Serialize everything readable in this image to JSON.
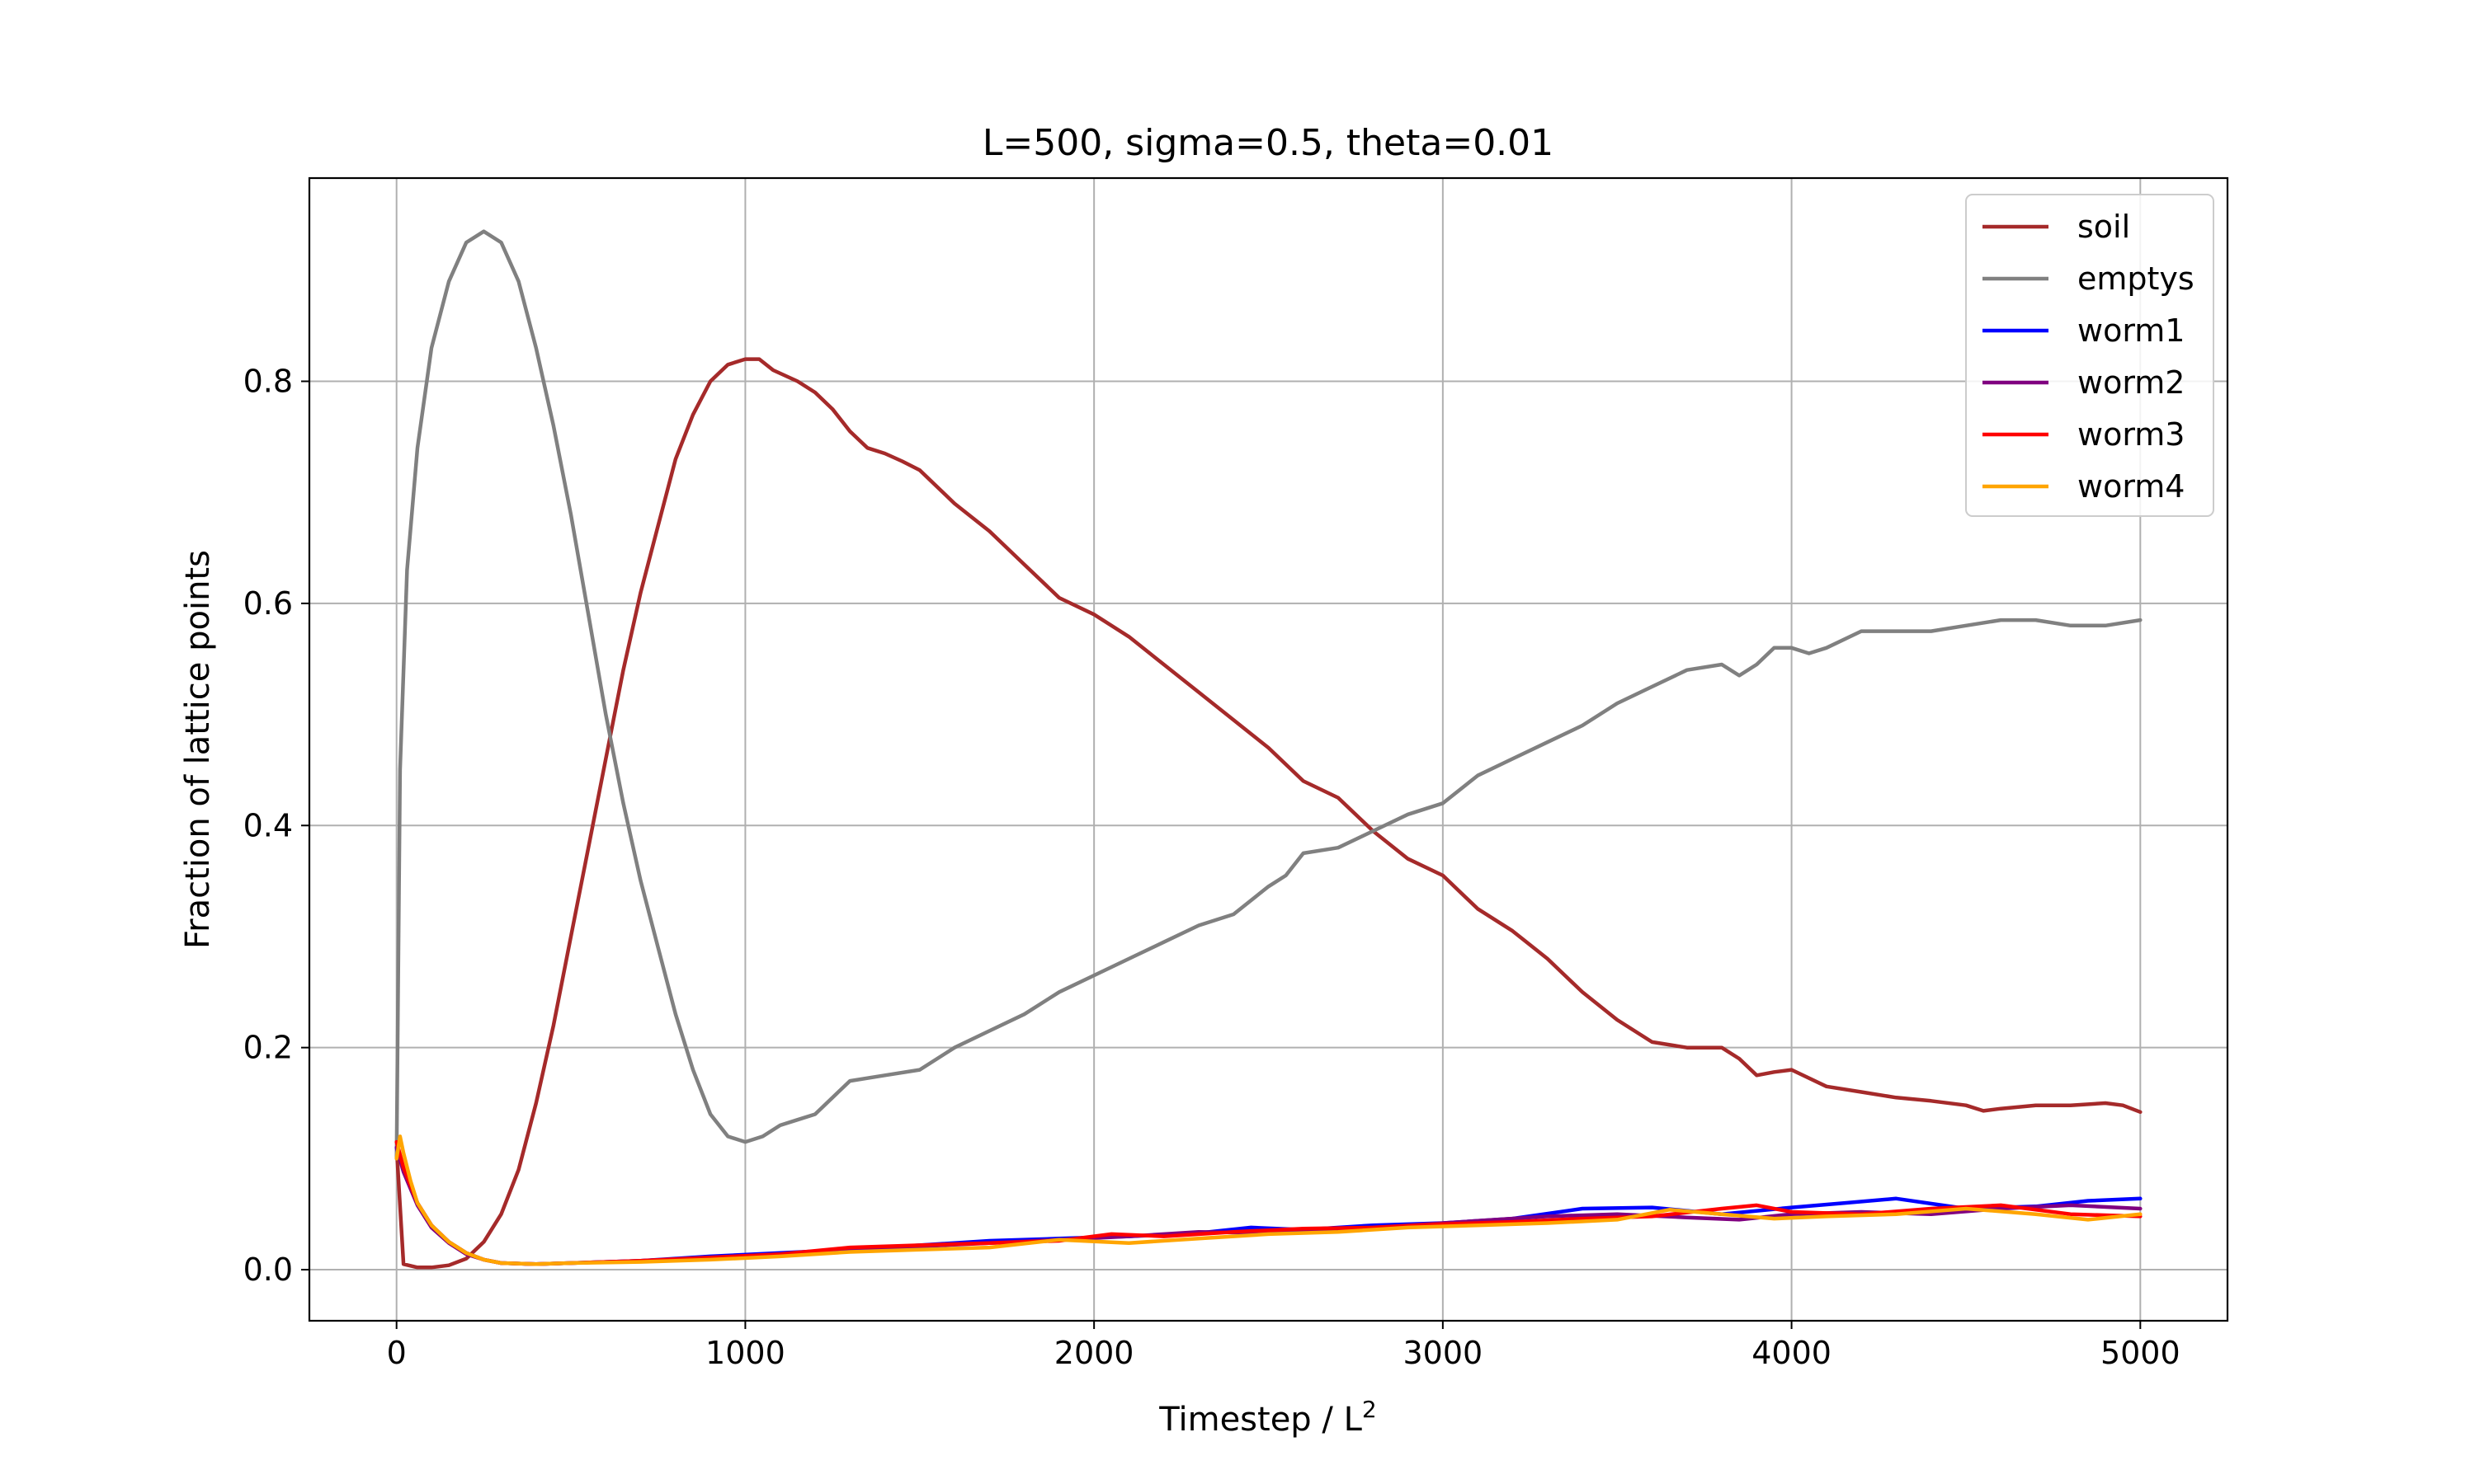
{
  "chart_data": {
    "type": "line",
    "title": "L=500, sigma=0.5, theta=0.01",
    "xlabel": "Timestep / L",
    "xlabel_sup": "2",
    "ylabel": "Fraction of lattice points",
    "xlim": [
      -250,
      5250
    ],
    "ylim": [
      -0.046,
      0.983
    ],
    "xticks": [
      0,
      1000,
      2000,
      3000,
      4000,
      5000
    ],
    "xtick_labels": [
      "0",
      "1000",
      "2000",
      "3000",
      "4000",
      "5000"
    ],
    "yticks": [
      0.0,
      0.2,
      0.4,
      0.6,
      0.8
    ],
    "ytick_labels": [
      "0.0",
      "0.2",
      "0.4",
      "0.6",
      "0.8"
    ],
    "grid": true,
    "legend_position": "top-right",
    "series": [
      {
        "name": "soil",
        "color": "#a52a2a",
        "x": [
          0,
          20,
          60,
          100,
          150,
          200,
          250,
          300,
          350,
          400,
          450,
          500,
          550,
          600,
          650,
          700,
          750,
          800,
          850,
          900,
          950,
          1000,
          1040,
          1080,
          1150,
          1200,
          1250,
          1300,
          1350,
          1400,
          1450,
          1500,
          1600,
          1700,
          1800,
          1900,
          2000,
          2100,
          2200,
          2300,
          2400,
          2500,
          2600,
          2700,
          2800,
          2900,
          3000,
          3100,
          3200,
          3300,
          3400,
          3500,
          3600,
          3700,
          3800,
          3850,
          3900,
          3950,
          4000,
          4100,
          4200,
          4300,
          4400,
          4500,
          4550,
          4600,
          4700,
          4800,
          4900,
          4950,
          5000
        ],
        "y": [
          0.11,
          0.005,
          0.002,
          0.002,
          0.004,
          0.01,
          0.025,
          0.05,
          0.09,
          0.15,
          0.22,
          0.3,
          0.38,
          0.46,
          0.54,
          0.61,
          0.67,
          0.73,
          0.77,
          0.8,
          0.815,
          0.82,
          0.82,
          0.81,
          0.8,
          0.79,
          0.775,
          0.755,
          0.74,
          0.735,
          0.728,
          0.72,
          0.69,
          0.665,
          0.635,
          0.605,
          0.59,
          0.57,
          0.545,
          0.52,
          0.495,
          0.47,
          0.44,
          0.425,
          0.395,
          0.37,
          0.355,
          0.325,
          0.305,
          0.28,
          0.25,
          0.225,
          0.205,
          0.2,
          0.2,
          0.19,
          0.175,
          0.178,
          0.18,
          0.165,
          0.16,
          0.155,
          0.152,
          0.148,
          0.143,
          0.145,
          0.148,
          0.148,
          0.15,
          0.148,
          0.142
        ]
      },
      {
        "name": "emptys",
        "color": "#808080",
        "x": [
          0,
          10,
          30,
          60,
          100,
          150,
          200,
          250,
          300,
          350,
          400,
          450,
          500,
          550,
          600,
          650,
          700,
          750,
          800,
          850,
          900,
          950,
          1000,
          1050,
          1100,
          1150,
          1200,
          1300,
          1400,
          1500,
          1600,
          1700,
          1800,
          1900,
          2000,
          2100,
          2200,
          2300,
          2400,
          2500,
          2550,
          2600,
          2700,
          2800,
          2900,
          3000,
          3100,
          3200,
          3300,
          3400,
          3500,
          3600,
          3700,
          3800,
          3850,
          3900,
          3950,
          4000,
          4050,
          4100,
          4200,
          4300,
          4400,
          4500,
          4600,
          4700,
          4800,
          4900,
          5000
        ],
        "y": [
          0.1,
          0.45,
          0.63,
          0.74,
          0.83,
          0.89,
          0.925,
          0.935,
          0.925,
          0.89,
          0.83,
          0.76,
          0.68,
          0.59,
          0.5,
          0.42,
          0.35,
          0.29,
          0.23,
          0.18,
          0.14,
          0.12,
          0.115,
          0.12,
          0.13,
          0.135,
          0.14,
          0.17,
          0.175,
          0.18,
          0.2,
          0.215,
          0.23,
          0.25,
          0.265,
          0.28,
          0.295,
          0.31,
          0.32,
          0.345,
          0.355,
          0.375,
          0.38,
          0.395,
          0.41,
          0.42,
          0.445,
          0.46,
          0.475,
          0.49,
          0.51,
          0.525,
          0.54,
          0.545,
          0.535,
          0.545,
          0.56,
          0.56,
          0.555,
          0.56,
          0.575,
          0.575,
          0.575,
          0.58,
          0.585,
          0.585,
          0.58,
          0.58,
          0.585
        ]
      },
      {
        "name": "worm1",
        "color": "#0000ff",
        "x": [
          0,
          20,
          60,
          100,
          150,
          200,
          250,
          300,
          400,
          500,
          700,
          900,
          1100,
          1300,
          1500,
          1700,
          1900,
          2100,
          2300,
          2450,
          2600,
          2800,
          3000,
          3200,
          3400,
          3600,
          3800,
          4000,
          4150,
          4300,
          4500,
          4700,
          4850,
          5000
        ],
        "y": [
          0.11,
          0.09,
          0.06,
          0.04,
          0.025,
          0.015,
          0.009,
          0.006,
          0.005,
          0.006,
          0.008,
          0.012,
          0.015,
          0.018,
          0.022,
          0.026,
          0.028,
          0.03,
          0.033,
          0.038,
          0.036,
          0.04,
          0.042,
          0.046,
          0.055,
          0.056,
          0.05,
          0.056,
          0.06,
          0.064,
          0.055,
          0.057,
          0.062,
          0.064
        ]
      },
      {
        "name": "worm2",
        "color": "#800080",
        "x": [
          0,
          20,
          60,
          100,
          150,
          200,
          250,
          300,
          400,
          500,
          700,
          900,
          1100,
          1300,
          1500,
          1700,
          1900,
          2100,
          2300,
          2500,
          2700,
          2900,
          3100,
          3300,
          3500,
          3700,
          3850,
          4000,
          4200,
          4400,
          4600,
          4800,
          5000
        ],
        "y": [
          0.11,
          0.088,
          0.058,
          0.038,
          0.024,
          0.014,
          0.009,
          0.006,
          0.005,
          0.006,
          0.008,
          0.011,
          0.014,
          0.018,
          0.021,
          0.024,
          0.027,
          0.03,
          0.034,
          0.033,
          0.036,
          0.04,
          0.044,
          0.048,
          0.05,
          0.047,
          0.045,
          0.05,
          0.052,
          0.05,
          0.055,
          0.058,
          0.055
        ]
      },
      {
        "name": "worm3",
        "color": "#ff0000",
        "x": [
          0,
          20,
          60,
          100,
          150,
          200,
          250,
          300,
          400,
          500,
          700,
          900,
          1100,
          1300,
          1500,
          1700,
          1900,
          2050,
          2200,
          2400,
          2600,
          2800,
          3000,
          3200,
          3400,
          3600,
          3800,
          3900,
          4000,
          4200,
          4400,
          4600,
          4800,
          5000
        ],
        "y": [
          0.115,
          0.092,
          0.06,
          0.04,
          0.025,
          0.015,
          0.009,
          0.006,
          0.005,
          0.006,
          0.008,
          0.011,
          0.014,
          0.02,
          0.022,
          0.024,
          0.026,
          0.032,
          0.03,
          0.034,
          0.037,
          0.038,
          0.041,
          0.043,
          0.046,
          0.048,
          0.055,
          0.058,
          0.052,
          0.05,
          0.055,
          0.058,
          0.05,
          0.048
        ]
      },
      {
        "name": "worm4",
        "color": "#ffa500",
        "x": [
          0,
          10,
          20,
          40,
          60,
          100,
          150,
          200,
          250,
          300,
          400,
          500,
          700,
          900,
          1100,
          1300,
          1500,
          1700,
          1900,
          2100,
          2300,
          2500,
          2700,
          2900,
          3100,
          3300,
          3500,
          3650,
          3800,
          3950,
          4100,
          4300,
          4500,
          4700,
          4850,
          5000
        ],
        "y": [
          0.1,
          0.12,
          0.105,
          0.08,
          0.06,
          0.04,
          0.025,
          0.015,
          0.009,
          0.006,
          0.005,
          0.006,
          0.007,
          0.009,
          0.012,
          0.016,
          0.018,
          0.02,
          0.027,
          0.024,
          0.028,
          0.032,
          0.034,
          0.038,
          0.04,
          0.042,
          0.045,
          0.054,
          0.05,
          0.046,
          0.048,
          0.05,
          0.055,
          0.05,
          0.045,
          0.05
        ]
      }
    ]
  }
}
